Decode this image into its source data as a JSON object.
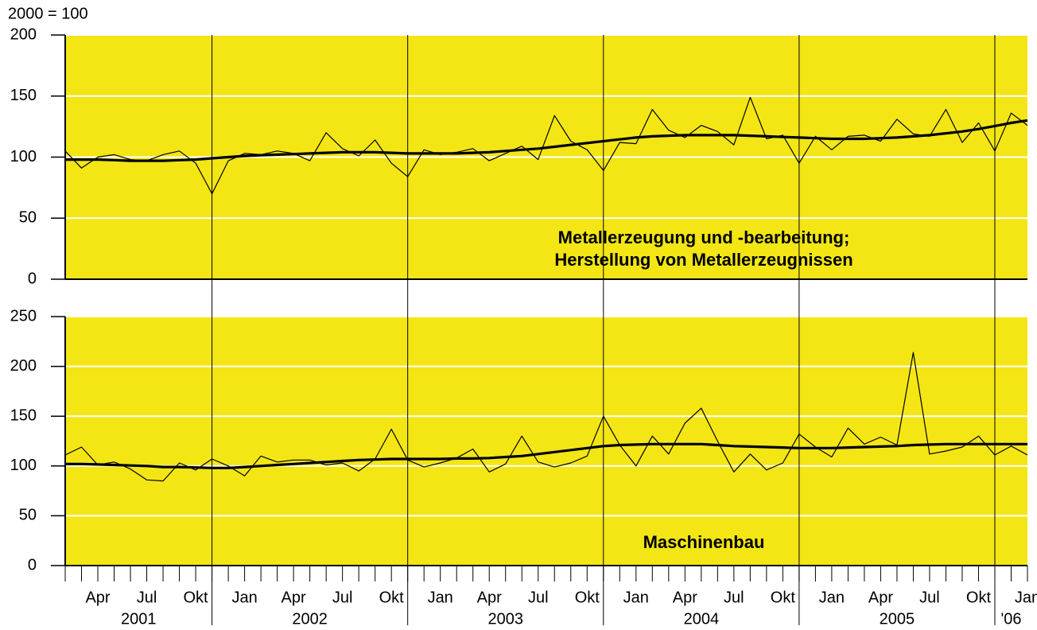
{
  "header": "2000 = 100",
  "chart_data": [
    {
      "type": "line",
      "annotation": [
        "Metallerzeugung und -bearbeitung;",
        "Herstellung von Metallerzeugnissen"
      ],
      "background": "#f3e614",
      "ylim": [
        0,
        200
      ],
      "yticks": [
        0,
        50,
        100,
        150,
        200
      ],
      "grid": true,
      "series": [
        {
          "color": "#000000",
          "values": [
            105,
            91,
            100,
            102,
            98,
            97,
            102,
            105,
            95,
            70,
            97,
            103,
            102,
            105,
            103,
            97,
            120,
            107,
            101,
            114,
            95,
            84,
            106,
            102,
            104,
            107,
            97,
            103,
            109,
            98,
            134,
            113,
            106,
            89,
            112,
            111,
            139,
            122,
            116,
            126,
            121,
            110,
            149,
            115,
            118,
            95,
            117,
            106,
            117,
            118,
            113,
            131,
            119,
            117,
            139,
            112,
            128,
            105,
            136,
            126
          ]
        },
        {
          "color": "#000000",
          "values": [
            98,
            98,
            98,
            97.5,
            97,
            97,
            97,
            97.5,
            98,
            99,
            100,
            101,
            101.5,
            102,
            102.5,
            103,
            103.5,
            104,
            104,
            104,
            103.5,
            103,
            103,
            103,
            103,
            103.5,
            104,
            105,
            106,
            107,
            108.5,
            110,
            111.5,
            113,
            114.5,
            116,
            117,
            117.5,
            118,
            118,
            118,
            118,
            117.5,
            117,
            116.5,
            116,
            115.5,
            115,
            115,
            115,
            115.5,
            116,
            117,
            118,
            119.5,
            121,
            123,
            125.5,
            128,
            130
          ]
        }
      ]
    },
    {
      "type": "line",
      "annotation": [
        "Maschinenbau"
      ],
      "background": "#f3e614",
      "ylim": [
        0,
        250
      ],
      "yticks": [
        0,
        50,
        100,
        150,
        200,
        250
      ],
      "grid": true,
      "categories": [
        null,
        "Apr",
        null,
        null,
        "Jul",
        null,
        null,
        "Okt",
        null,
        null,
        "Jan",
        null,
        null,
        "Apr",
        null,
        null,
        "Jul",
        null,
        null,
        "Okt",
        null,
        null,
        "Jan",
        null,
        null,
        "Apr",
        null,
        null,
        "Jul",
        null,
        null,
        "Okt",
        null,
        null,
        "Jan",
        null,
        null,
        "Apr",
        null,
        null,
        "Jul",
        null,
        null,
        "Okt",
        null,
        null,
        "Jan",
        null,
        null,
        "Apr",
        null,
        null,
        "Jul",
        null,
        null,
        "Okt",
        null,
        null,
        "Jan",
        null
      ],
      "years": [
        "2001",
        "2002",
        "2003",
        "2004",
        "2005",
        "'06"
      ],
      "series": [
        {
          "color": "#000000",
          "values": [
            111,
            119,
            101,
            104,
            97,
            86,
            85,
            103,
            96,
            107,
            100,
            90,
            110,
            104,
            106,
            106,
            101,
            103,
            95,
            107,
            137,
            106,
            99,
            103,
            108,
            117,
            94,
            102,
            130,
            104,
            99,
            103,
            110,
            150,
            121,
            100,
            130,
            112,
            143,
            158,
            125,
            94,
            112,
            96,
            103,
            132,
            119,
            109,
            138,
            122,
            129,
            121,
            214,
            112,
            115,
            119,
            130,
            111,
            120,
            111
          ]
        },
        {
          "color": "#000000",
          "values": [
            102,
            102,
            101.5,
            101,
            100.5,
            100,
            99,
            99,
            98.5,
            98,
            98,
            99,
            100,
            101,
            102,
            103,
            104,
            105,
            106,
            106.5,
            107,
            107,
            107,
            107,
            107.5,
            107.5,
            108,
            109,
            110,
            112,
            114,
            116,
            118,
            120,
            121,
            121.5,
            122,
            122,
            122,
            122,
            121,
            120,
            119.5,
            119,
            118.5,
            118,
            118,
            118,
            118.5,
            119,
            119.5,
            120,
            121,
            121.5,
            122,
            122,
            122,
            122,
            122,
            122
          ]
        }
      ]
    }
  ]
}
